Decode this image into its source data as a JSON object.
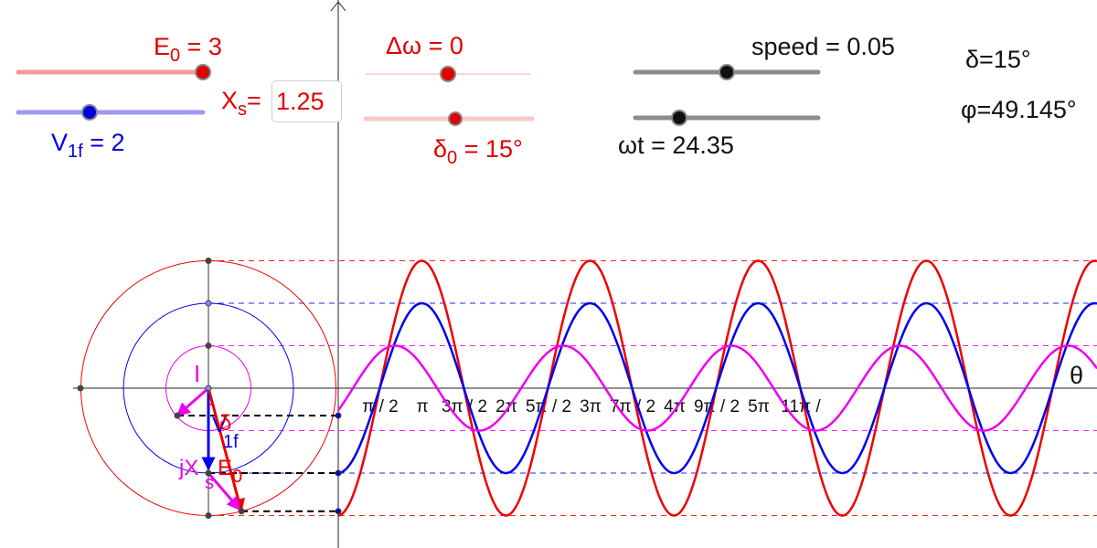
{
  "sliders": {
    "e0": {
      "label": "E",
      "sub": "0",
      "value_text": " = 3",
      "value": 3,
      "color": "#e00000",
      "track_color": "#f29a9a"
    },
    "v1f": {
      "label": "V",
      "sub": "1f",
      "value_text": " = 2",
      "value": 2,
      "color": "#0000e0",
      "track_color": "#9a9af2"
    },
    "delta_omega": {
      "text": "Δω = 0",
      "value": 0,
      "color": "#e00000"
    },
    "delta0": {
      "label": "δ",
      "sub": "0",
      "value_text": " = 15°",
      "value": 15,
      "color": "#e00000"
    },
    "speed": {
      "text": "speed = 0.05",
      "value": 0.05
    },
    "omega_t": {
      "text": "ωt = 24.35",
      "value": 24.35
    }
  },
  "xs_input": {
    "label": "X",
    "sub": "s",
    "eq": "=",
    "value": "1.25"
  },
  "readouts": {
    "delta": "δ=15°",
    "phi": "φ=49.145°"
  },
  "diagram": {
    "axis_label": "θ",
    "tick_labels": [
      "π / 2",
      "π",
      "3π / 2",
      "2π",
      "5π / 2",
      "3π",
      "7π / 2",
      "4π",
      "9π / 2",
      "5π",
      "11π /"
    ],
    "phasor_labels": {
      "current": "I",
      "v1f": "V",
      "v1f_sub": "1f",
      "delta": "δ",
      "jxs": "jX",
      "jxs_sub": "s",
      "e0": "E",
      "e0_sub": "0"
    },
    "colors": {
      "e0": "#ee0000",
      "v1f": "#0000ee",
      "current": "#ee00ee",
      "jxs": "#ee00ee",
      "projection": "#000000"
    },
    "waves": [
      {
        "name": "E0",
        "amplitude": 3,
        "color": "#ee0000"
      },
      {
        "name": "V1f",
        "amplitude": 2,
        "color": "#0000ee"
      },
      {
        "name": "I",
        "amplitude": 1,
        "color": "#ee00ee"
      }
    ]
  }
}
